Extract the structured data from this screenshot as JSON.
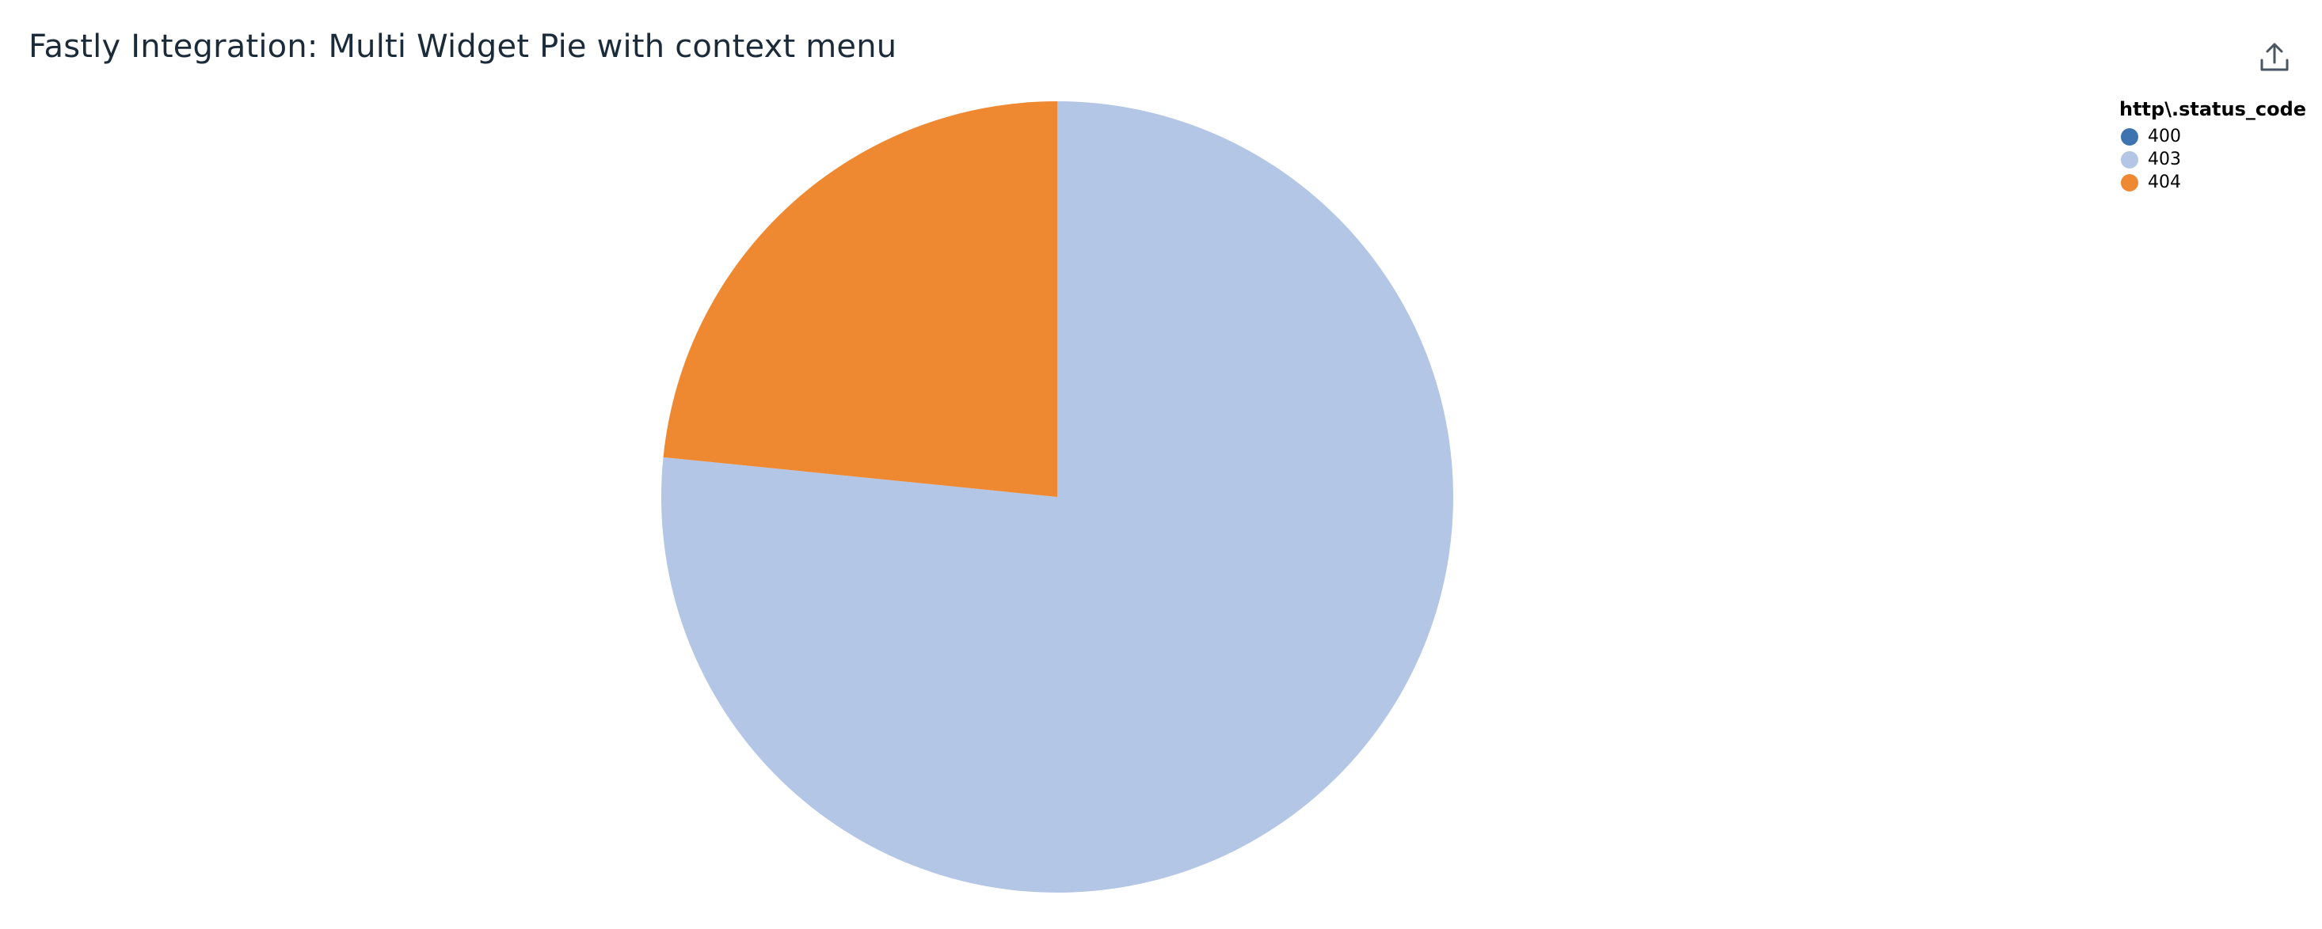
{
  "widget": {
    "title": "Fastly Integration: Multi Widget Pie with context menu",
    "export_icon": "export-upload-icon"
  },
  "chart_data": {
    "type": "pie",
    "title": "Fastly Integration: Multi Widget Pie with context menu",
    "legend_title": "http\\.status_code",
    "legend_placement": "top-right",
    "start_angle_deg": 0,
    "direction": "clockwise",
    "slices": [
      {
        "label": "400",
        "value": 0,
        "color": "#3d73b1"
      },
      {
        "label": "403",
        "value": 76.6,
        "color": "#b3c6e6"
      },
      {
        "label": "404",
        "value": 23.4,
        "color": "#ee8831"
      }
    ]
  }
}
